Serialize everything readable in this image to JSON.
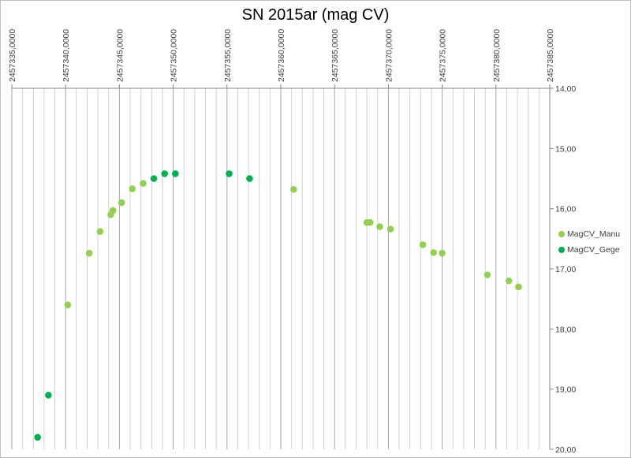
{
  "chart_data": {
    "type": "scatter",
    "title": "SN 2015ar (mag CV)",
    "xlabel": "",
    "ylabel": "",
    "xlim": [
      2457335,
      2457385
    ],
    "ylim": [
      14,
      20
    ],
    "y_reversed": true,
    "x_axis_position": "top",
    "y_axis_position": "right",
    "grid": "vertical-only",
    "legend_position": "right",
    "x_ticks": [
      "2457335,0000",
      "2457340,0000",
      "2457345,0000",
      "2457350,0000",
      "2457355,0000",
      "2457360,0000",
      "2457365,0000",
      "2457370,0000",
      "2457375,0000",
      "2457380,0000",
      "2457385,0000"
    ],
    "y_ticks": [
      "14,00",
      "15,00",
      "16,00",
      "17,00",
      "18,00",
      "19,00",
      "20,00"
    ],
    "series": [
      {
        "name": "MagCV_Manu",
        "color": "#92d050",
        "points": [
          {
            "x": 2457340.2,
            "y": 17.6
          },
          {
            "x": 2457342.2,
            "y": 16.74
          },
          {
            "x": 2457343.2,
            "y": 16.38
          },
          {
            "x": 2457344.2,
            "y": 16.1
          },
          {
            "x": 2457344.4,
            "y": 16.03
          },
          {
            "x": 2457345.2,
            "y": 15.9
          },
          {
            "x": 2457346.2,
            "y": 15.67
          },
          {
            "x": 2457347.2,
            "y": 15.58
          },
          {
            "x": 2457361.2,
            "y": 15.68
          },
          {
            "x": 2457368.0,
            "y": 16.23
          },
          {
            "x": 2457368.3,
            "y": 16.23
          },
          {
            "x": 2457369.2,
            "y": 16.3
          },
          {
            "x": 2457370.2,
            "y": 16.34
          },
          {
            "x": 2457373.2,
            "y": 16.6
          },
          {
            "x": 2457374.2,
            "y": 16.73
          },
          {
            "x": 2457375.0,
            "y": 16.74
          },
          {
            "x": 2457379.2,
            "y": 17.1
          },
          {
            "x": 2457381.2,
            "y": 17.2
          },
          {
            "x": 2457382.1,
            "y": 17.3
          }
        ]
      },
      {
        "name": "MagCV_Gege",
        "color": "#00b050",
        "points": [
          {
            "x": 2457337.4,
            "y": 19.8
          },
          {
            "x": 2457338.4,
            "y": 19.1
          },
          {
            "x": 2457348.2,
            "y": 15.5
          },
          {
            "x": 2457349.2,
            "y": 15.42
          },
          {
            "x": 2457350.2,
            "y": 15.42
          },
          {
            "x": 2457355.2,
            "y": 15.42
          },
          {
            "x": 2457357.1,
            "y": 15.5
          }
        ]
      }
    ]
  }
}
